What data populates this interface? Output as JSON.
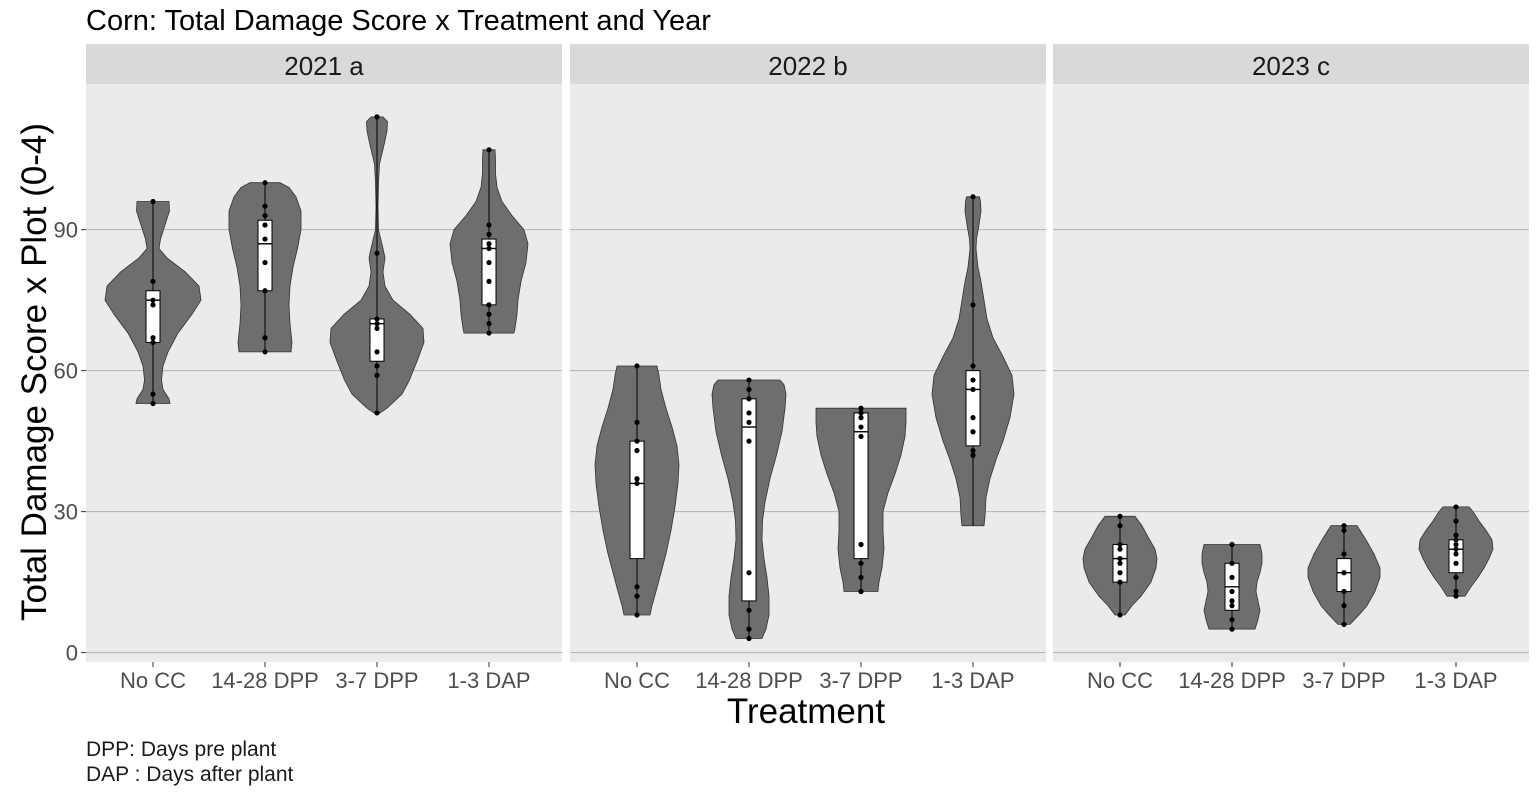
{
  "chart_data": {
    "type": "violin",
    "title": "Corn: Total Damage Score x Treatment and Year",
    "xlabel": "Treatment",
    "ylabel": "Total Damage Score x Plot (0-4)",
    "y_ticks": [
      0,
      30,
      60,
      90
    ],
    "ylim": [
      -2,
      121
    ],
    "grid": true,
    "categories": [
      "No CC",
      "14-28 DPP",
      "3-7 DPP",
      "1-3 DAP"
    ],
    "caption": [
      "DPP: Days pre plant",
      "DAP : Days after plant"
    ],
    "colors": {
      "panel_bg": "#ebebeb",
      "strip_bg": "#d9d9d9",
      "violin_fill": "#6e6e6e",
      "grid": "#b3b3b3",
      "box_fill": "#ffffff",
      "point": "#000000"
    },
    "panels": [
      {
        "label": "2021  a",
        "groups": [
          {
            "name": "No CC",
            "box": {
              "q1": 66,
              "median": 75,
              "q3": 77,
              "wlo": 53,
              "whi": 96
            },
            "points": [
              96,
              79,
              75,
              74,
              67,
              66,
              55,
              53
            ],
            "density": [
              [
                53,
                0.34
              ],
              [
                54,
                0.32
              ],
              [
                56,
                0.2
              ],
              [
                58,
                0.17
              ],
              [
                61,
                0.2
              ],
              [
                64,
                0.3
              ],
              [
                68,
                0.5
              ],
              [
                72,
                0.78
              ],
              [
                75,
                0.96
              ],
              [
                78,
                0.92
              ],
              [
                81,
                0.65
              ],
              [
                84,
                0.28
              ],
              [
                86,
                0.12
              ],
              [
                88,
                0.15
              ],
              [
                91,
                0.24
              ],
              [
                94,
                0.33
              ],
              [
                96,
                0.32
              ]
            ]
          },
          {
            "name": "14-28 DPP",
            "box": {
              "q1": 77,
              "median": 87,
              "q3": 92,
              "wlo": 64,
              "whi": 100
            },
            "points": [
              100,
              95,
              93,
              91,
              88,
              83,
              77,
              67,
              64
            ],
            "density": [
              [
                64,
                0.52
              ],
              [
                66,
                0.54
              ],
              [
                70,
                0.5
              ],
              [
                74,
                0.48
              ],
              [
                78,
                0.5
              ],
              [
                82,
                0.56
              ],
              [
                86,
                0.65
              ],
              [
                90,
                0.72
              ],
              [
                94,
                0.72
              ],
              [
                97,
                0.62
              ],
              [
                99,
                0.48
              ],
              [
                100,
                0.3
              ]
            ]
          },
          {
            "name": "3-7 DPP",
            "box": {
              "q1": 62,
              "median": 70,
              "q3": 71,
              "wlo": 51,
              "whi": 114
            },
            "points": [
              114,
              85,
              71,
              70,
              69,
              64,
              61,
              59,
              51
            ],
            "density": [
              [
                51,
                0.06
              ],
              [
                52,
                0.2
              ],
              [
                55,
                0.5
              ],
              [
                58,
                0.65
              ],
              [
                62,
                0.8
              ],
              [
                66,
                0.94
              ],
              [
                69,
                0.92
              ],
              [
                72,
                0.66
              ],
              [
                75,
                0.32
              ],
              [
                78,
                0.16
              ],
              [
                81,
                0.12
              ],
              [
                84,
                0.16
              ],
              [
                86,
                0.12
              ],
              [
                90,
                0.03
              ],
              [
                95,
                0.02
              ],
              [
                100,
                0.03
              ],
              [
                104,
                0.05
              ],
              [
                108,
                0.14
              ],
              [
                111,
                0.2
              ],
              [
                113,
                0.21
              ],
              [
                114,
                0.12
              ]
            ]
          },
          {
            "name": "1-3 DAP",
            "box": {
              "q1": 74,
              "median": 86,
              "q3": 88,
              "wlo": 68,
              "whi": 107
            },
            "points": [
              107,
              91,
              89,
              87,
              86,
              83,
              79,
              74,
              72,
              70,
              68
            ],
            "density": [
              [
                68,
                0.5
              ],
              [
                69,
                0.52
              ],
              [
                72,
                0.56
              ],
              [
                75,
                0.58
              ],
              [
                79,
                0.64
              ],
              [
                83,
                0.74
              ],
              [
                87,
                0.78
              ],
              [
                90,
                0.7
              ],
              [
                93,
                0.46
              ],
              [
                96,
                0.26
              ],
              [
                99,
                0.16
              ],
              [
                102,
                0.13
              ],
              [
                105,
                0.13
              ],
              [
                107,
                0.12
              ]
            ]
          }
        ]
      },
      {
        "label": "2022  b",
        "groups": [
          {
            "name": "No CC",
            "box": {
              "q1": 20,
              "median": 36,
              "q3": 45,
              "wlo": 8,
              "whi": 61
            },
            "points": [
              61,
              49,
              45,
              43,
              37,
              36,
              14,
              12,
              8
            ],
            "density": [
              [
                8,
                0.26
              ],
              [
                10,
                0.3
              ],
              [
                13,
                0.38
              ],
              [
                17,
                0.48
              ],
              [
                21,
                0.58
              ],
              [
                26,
                0.68
              ],
              [
                31,
                0.76
              ],
              [
                36,
                0.82
              ],
              [
                40,
                0.84
              ],
              [
                44,
                0.8
              ],
              [
                48,
                0.7
              ],
              [
                52,
                0.58
              ],
              [
                56,
                0.48
              ],
              [
                59,
                0.44
              ],
              [
                61,
                0.4
              ]
            ]
          },
          {
            "name": "14-28 DPP",
            "box": {
              "q1": 11,
              "median": 48,
              "q3": 54,
              "wlo": 3,
              "whi": 58
            },
            "points": [
              58,
              56,
              54,
              51,
              49,
              45,
              17,
              9,
              5,
              3
            ],
            "density": [
              [
                3,
                0.26
              ],
              [
                5,
                0.34
              ],
              [
                8,
                0.4
              ],
              [
                12,
                0.4
              ],
              [
                16,
                0.36
              ],
              [
                20,
                0.3
              ],
              [
                24,
                0.26
              ],
              [
                28,
                0.27
              ],
              [
                32,
                0.32
              ],
              [
                37,
                0.42
              ],
              [
                42,
                0.55
              ],
              [
                47,
                0.66
              ],
              [
                52,
                0.72
              ],
              [
                55,
                0.74
              ],
              [
                57,
                0.7
              ],
              [
                58,
                0.62
              ]
            ]
          },
          {
            "name": "3-7 DPP",
            "box": {
              "q1": 20,
              "median": 47,
              "q3": 51,
              "wlo": 13,
              "whi": 52
            },
            "points": [
              52,
              51,
              50,
              48,
              46,
              23,
              19,
              16,
              13
            ],
            "density": [
              [
                13,
                0.34
              ],
              [
                15,
                0.36
              ],
              [
                18,
                0.42
              ],
              [
                22,
                0.46
              ],
              [
                26,
                0.44
              ],
              [
                30,
                0.44
              ],
              [
                34,
                0.54
              ],
              [
                38,
                0.68
              ],
              [
                42,
                0.8
              ],
              [
                46,
                0.88
              ],
              [
                49,
                0.9
              ],
              [
                51,
                0.9
              ],
              [
                52,
                0.9
              ]
            ]
          },
          {
            "name": "1-3 DAP",
            "box": {
              "q1": 44,
              "median": 56,
              "q3": 60,
              "wlo": 27,
              "whi": 97
            },
            "points": [
              97,
              74,
              61,
              58,
              56,
              50,
              47,
              43,
              42
            ],
            "density": [
              [
                27,
                0.22
              ],
              [
                29,
                0.24
              ],
              [
                33,
                0.26
              ],
              [
                37,
                0.34
              ],
              [
                41,
                0.46
              ],
              [
                45,
                0.6
              ],
              [
                50,
                0.74
              ],
              [
                55,
                0.82
              ],
              [
                59,
                0.78
              ],
              [
                63,
                0.6
              ],
              [
                67,
                0.4
              ],
              [
                71,
                0.28
              ],
              [
                75,
                0.22
              ],
              [
                79,
                0.16
              ],
              [
                82,
                0.1
              ],
              [
                86,
                0.06
              ],
              [
                88,
                0.07
              ],
              [
                91,
                0.12
              ],
              [
                94,
                0.16
              ],
              [
                96,
                0.15
              ],
              [
                97,
                0.13
              ]
            ]
          }
        ]
      },
      {
        "label": "2023  c",
        "groups": [
          {
            "name": "No CC",
            "box": {
              "q1": 15,
              "median": 20,
              "q3": 23,
              "wlo": 8,
              "whi": 29
            },
            "points": [
              29,
              27,
              23,
              22,
              20,
              19,
              17,
              15,
              8
            ],
            "density": [
              [
                8,
                0.1
              ],
              [
                10,
                0.24
              ],
              [
                12,
                0.42
              ],
              [
                15,
                0.62
              ],
              [
                18,
                0.72
              ],
              [
                20,
                0.74
              ],
              [
                22,
                0.7
              ],
              [
                25,
                0.54
              ],
              [
                27,
                0.44
              ],
              [
                29,
                0.3
              ]
            ]
          },
          {
            "name": "14-28 DPP",
            "box": {
              "q1": 9,
              "median": 14,
              "q3": 19,
              "wlo": 5,
              "whi": 23
            },
            "points": [
              23,
              19,
              16,
              13,
              11,
              10,
              7,
              5
            ],
            "density": [
              [
                5,
                0.46
              ],
              [
                7,
                0.52
              ],
              [
                9,
                0.56
              ],
              [
                11,
                0.52
              ],
              [
                13,
                0.48
              ],
              [
                15,
                0.5
              ],
              [
                17,
                0.56
              ],
              [
                19,
                0.6
              ],
              [
                21,
                0.6
              ],
              [
                23,
                0.56
              ]
            ]
          },
          {
            "name": "3-7 DPP",
            "box": {
              "q1": 13,
              "median": 17,
              "q3": 20,
              "wlo": 6,
              "whi": 27
            },
            "points": [
              27,
              26,
              21,
              17,
              13,
              10,
              6
            ],
            "density": [
              [
                6,
                0.12
              ],
              [
                8,
                0.3
              ],
              [
                10,
                0.46
              ],
              [
                13,
                0.62
              ],
              [
                16,
                0.72
              ],
              [
                18,
                0.72
              ],
              [
                21,
                0.6
              ],
              [
                24,
                0.44
              ],
              [
                26,
                0.32
              ],
              [
                27,
                0.26
              ]
            ]
          },
          {
            "name": "1-3 DAP",
            "box": {
              "q1": 17,
              "median": 22,
              "q3": 24,
              "wlo": 12,
              "whi": 31
            },
            "points": [
              31,
              28,
              25,
              24,
              23,
              22,
              21,
              19,
              16,
              13,
              12
            ],
            "density": [
              [
                12,
                0.18
              ],
              [
                14,
                0.3
              ],
              [
                16,
                0.44
              ],
              [
                18,
                0.56
              ],
              [
                20,
                0.66
              ],
              [
                22,
                0.74
              ],
              [
                24,
                0.72
              ],
              [
                26,
                0.6
              ],
              [
                28,
                0.46
              ],
              [
                30,
                0.34
              ],
              [
                31,
                0.26
              ]
            ]
          }
        ]
      }
    ]
  }
}
